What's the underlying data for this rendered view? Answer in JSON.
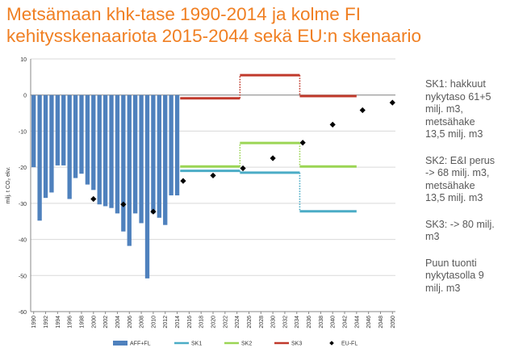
{
  "title_lines": [
    "Metsämaan khk-tase 1990-2014 ja kolme FI",
    "kehitysskenaariota 2015-2044 sekä EU:n skenaario"
  ],
  "notes": [
    "SK1: hakkuut\nnykytaso 61+5\nmilj. m3,\nmetsähake\n13,5 milj. m3",
    "SK2: E&I perus\n-> 68 milj. m3,\nmetsähake\n13,5 milj. m3",
    "SK3: -> 80 milj.\nm3",
    "Puun tuonti\nnykytasolla 9\nmilj. m3"
  ],
  "chart_data": {
    "type": "bar",
    "title": "Metsämaan khk-tase 1990-2014 ja kolme FI kehitysskenaariota 2015-2044 sekä EU:n skenaario",
    "ylabel": "milj. t CO₂ ekv.",
    "ylim": [
      -60,
      10
    ],
    "yticks": [
      "10",
      "0",
      "-10",
      "-20",
      "-30",
      "-40",
      "-50",
      "-60"
    ],
    "xlim": [
      1990,
      2050
    ],
    "xticks": [
      "1990",
      "1992",
      "1994",
      "1996",
      "1998",
      "2000",
      "2002",
      "2004",
      "2006",
      "2008",
      "2010",
      "2012",
      "2014",
      "2016",
      "2018",
      "2020",
      "2022",
      "2024",
      "2026",
      "2028",
      "2030",
      "2032",
      "2034",
      "2036",
      "2038",
      "2040",
      "2042",
      "2044",
      "2046",
      "2048",
      "2050"
    ],
    "grid": true,
    "legend_position": "bottom",
    "legend": [
      {
        "label": "AFF+FL",
        "kind": "bar",
        "color": "#4f81bd"
      },
      {
        "label": "SK1",
        "kind": "line",
        "color": "#4bacc6"
      },
      {
        "label": "SK2",
        "kind": "line",
        "color": "#9bd554"
      },
      {
        "label": "SK3",
        "kind": "line",
        "color": "#c0392b"
      },
      {
        "label": "EU-FL",
        "kind": "marker",
        "color": "#000000"
      }
    ],
    "bars": {
      "name": "AFF+FL",
      "color": "#4f81bd",
      "x": [
        1990,
        1991,
        1992,
        1993,
        1994,
        1995,
        1996,
        1997,
        1998,
        1999,
        2000,
        2001,
        2002,
        2003,
        2004,
        2005,
        2006,
        2007,
        2008,
        2009,
        2010,
        2011,
        2012,
        2013,
        2014
      ],
      "values": [
        -20,
        -34.8,
        -28.5,
        -27,
        -19.5,
        -19.5,
        -28.8,
        -23,
        -21.8,
        -24.8,
        -26.3,
        -30.3,
        -30.8,
        -31.3,
        -32.8,
        -37.8,
        -41.8,
        -32.8,
        -35.5,
        -50.8,
        -32.8,
        -34,
        -36,
        -27.8,
        -27.8
      ]
    },
    "series": [
      {
        "name": "SK1",
        "color": "#4bacc6",
        "segments": [
          {
            "x": [
              2015,
              2024.5
            ],
            "y": [
              -21,
              -21
            ]
          },
          {
            "x": [
              2025,
              2034.5
            ],
            "y": [
              -21.5,
              -21.5
            ]
          },
          {
            "x": [
              2035,
              2044
            ],
            "y": [
              -32.2,
              -32.2
            ]
          }
        ]
      },
      {
        "name": "SK2",
        "color": "#9bd554",
        "segments": [
          {
            "x": [
              2015,
              2024.5
            ],
            "y": [
              -19.8,
              -19.8
            ]
          },
          {
            "x": [
              2025,
              2034.5
            ],
            "y": [
              -13.3,
              -13.3
            ]
          },
          {
            "x": [
              2035,
              2044
            ],
            "y": [
              -19.8,
              -19.8
            ]
          }
        ]
      },
      {
        "name": "SK3",
        "color": "#c0392b",
        "segments": [
          {
            "x": [
              2015,
              2024.5
            ],
            "y": [
              -0.9,
              -0.9
            ]
          },
          {
            "x": [
              2025,
              2034.5
            ],
            "y": [
              5.5,
              5.5
            ]
          },
          {
            "x": [
              2035,
              2044
            ],
            "y": [
              -0.3,
              -0.3
            ]
          }
        ]
      }
    ],
    "markers": {
      "name": "EU-FL",
      "x": [
        2000,
        2005,
        2010,
        2015,
        2020,
        2025,
        2030,
        2035,
        2040,
        2045,
        2050
      ],
      "y": [
        -28.8,
        -30.3,
        -32.3,
        -23.8,
        -22.3,
        -20.3,
        -17.5,
        -13.2,
        -8.2,
        -4.2,
        -2.1
      ]
    }
  }
}
